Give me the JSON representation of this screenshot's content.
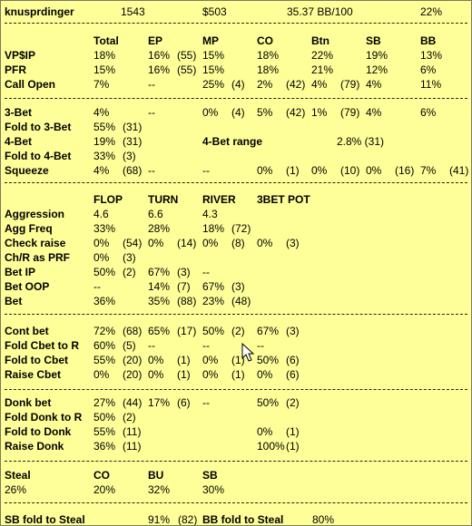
{
  "header": {
    "player": "knusprdinger",
    "hands": "1543",
    "winnings": "$503",
    "bb100": "35.37 BB/100",
    "pct": "22%"
  },
  "pre": {
    "cols": [
      "Total",
      "EP",
      "MP",
      "CO",
      "Btn",
      "SB",
      "BB"
    ],
    "rows": [
      {
        "label": "VP$IP",
        "cells": [
          [
            "18%",
            ""
          ],
          [
            "16%",
            "(55)"
          ],
          [
            "15%",
            ""
          ],
          [
            "18%",
            ""
          ],
          [
            "22%",
            ""
          ],
          [
            "19%",
            ""
          ],
          [
            "13%",
            ""
          ]
        ]
      },
      {
        "label": "PFR",
        "cells": [
          [
            "15%",
            ""
          ],
          [
            "16%",
            "(55)"
          ],
          [
            "15%",
            ""
          ],
          [
            "18%",
            ""
          ],
          [
            "21%",
            ""
          ],
          [
            "12%",
            ""
          ],
          [
            "6%",
            ""
          ]
        ]
      },
      {
        "label": "Call Open",
        "cells": [
          [
            "7%",
            ""
          ],
          [
            "--",
            ""
          ],
          [
            "25%",
            "(4)"
          ],
          [
            "2%",
            "(42)"
          ],
          [
            "4%",
            "(79)"
          ],
          [
            "4%",
            ""
          ],
          [
            "11%",
            ""
          ]
        ]
      }
    ]
  },
  "threebet": {
    "rows": [
      {
        "label": "3-Bet",
        "cells": [
          [
            "4%",
            ""
          ],
          [
            "--",
            ""
          ],
          [
            "0%",
            "(4)"
          ],
          [
            "5%",
            "(42)"
          ],
          [
            "1%",
            "(79)"
          ],
          [
            "4%",
            ""
          ],
          [
            "6%",
            ""
          ]
        ]
      },
      {
        "label": "Fold to 3-Bet",
        "cells": [
          [
            "55%",
            "(31)"
          ]
        ]
      },
      {
        "label": "4-Bet",
        "cells": [
          [
            "19%",
            "(31)"
          ]
        ]
      },
      {
        "label": "Fold to 4-Bet",
        "cells": [
          [
            "33%",
            "(3)"
          ]
        ]
      },
      {
        "label": "Squeeze",
        "cells": [
          [
            "4%",
            "(68)"
          ],
          [
            "--",
            ""
          ],
          [
            "--",
            ""
          ],
          [
            "0%",
            "(1)"
          ],
          [
            "0%",
            "(10)"
          ],
          [
            "0%",
            "(16)"
          ],
          [
            "7%",
            "(41)"
          ]
        ]
      }
    ],
    "range_label": "4-Bet range",
    "range_val": "2.8% (31)"
  },
  "post": {
    "cols": [
      "FLOP",
      "TURN",
      "RIVER",
      "3BET POT"
    ],
    "rows": [
      {
        "label": "Aggression",
        "cells": [
          [
            "4.6",
            ""
          ],
          [
            "6.6",
            ""
          ],
          [
            "4.3",
            ""
          ]
        ]
      },
      {
        "label": "Agg Freq",
        "cells": [
          [
            "33%",
            ""
          ],
          [
            "28%",
            ""
          ],
          [
            "18%",
            "(72)"
          ]
        ]
      },
      {
        "label": "Check raise",
        "cells": [
          [
            "0%",
            "(54)"
          ],
          [
            "0%",
            "(14)"
          ],
          [
            "0%",
            "(8)"
          ],
          [
            "0%",
            "(3)"
          ]
        ]
      },
      {
        "label": "Ch/R as PRF",
        "cells": [
          [
            "0%",
            "(3)"
          ]
        ]
      },
      {
        "label": "Bet IP",
        "cells": [
          [
            "50%",
            "(2)"
          ],
          [
            "67%",
            "(3)"
          ],
          [
            "--",
            ""
          ]
        ]
      },
      {
        "label": "Bet OOP",
        "cells": [
          [
            "--",
            ""
          ],
          [
            "14%",
            "(7)"
          ],
          [
            "67%",
            "(3)"
          ]
        ]
      },
      {
        "label": "Bet",
        "cells": [
          [
            "36%",
            ""
          ],
          [
            "35%",
            "(88)"
          ],
          [
            "23%",
            "(48)"
          ]
        ]
      }
    ]
  },
  "cbet": {
    "rows": [
      {
        "label": "Cont bet",
        "cells": [
          [
            "72%",
            "(68)"
          ],
          [
            "65%",
            "(17)"
          ],
          [
            "50%",
            "(2)"
          ],
          [
            "67%",
            "(3)"
          ]
        ]
      },
      {
        "label": "Fold Cbet to R",
        "cells": [
          [
            "60%",
            "(5)"
          ],
          [
            "--",
            ""
          ],
          [
            "--",
            ""
          ],
          [
            "--",
            ""
          ]
        ]
      },
      {
        "label": "Fold to Cbet",
        "cells": [
          [
            "55%",
            "(20)"
          ],
          [
            "0%",
            "(1)"
          ],
          [
            "0%",
            "(1)"
          ],
          [
            "50%",
            "(6)"
          ]
        ]
      },
      {
        "label": "Raise Cbet",
        "cells": [
          [
            "0%",
            "(20)"
          ],
          [
            "0%",
            "(1)"
          ],
          [
            "0%",
            "(1)"
          ],
          [
            "0%",
            "(6)"
          ]
        ]
      }
    ]
  },
  "donk": {
    "rows": [
      {
        "label": "Donk bet",
        "cells": [
          [
            "27%",
            "(44)"
          ],
          [
            "17%",
            "(6)"
          ],
          [
            "--",
            ""
          ],
          [
            "50%",
            "(2)"
          ]
        ]
      },
      {
        "label": "Fold Donk to R",
        "cells": [
          [
            "50%",
            "(2)"
          ]
        ]
      },
      {
        "label": "Fold to Donk",
        "cells": [
          [
            "55%",
            "(11)"
          ],
          [
            "",
            ""
          ],
          [
            "",
            ""
          ],
          [
            "0%",
            "(1)"
          ]
        ]
      },
      {
        "label": "Raise Donk",
        "cells": [
          [
            "36%",
            "(11)"
          ],
          [
            "",
            ""
          ],
          [
            "",
            ""
          ],
          [
            "100%",
            "(1)"
          ]
        ]
      }
    ]
  },
  "steal": {
    "label": "Steal",
    "val": "26%",
    "cols": [
      "CO",
      "BU",
      "SB"
    ],
    "vals": [
      "20%",
      "32%",
      "30%"
    ]
  },
  "sbsteal": {
    "label": "SB fold to Steal",
    "val": "91%",
    "n": "(82)",
    "label2": "BB fold to Steal",
    "val2": "80%"
  }
}
